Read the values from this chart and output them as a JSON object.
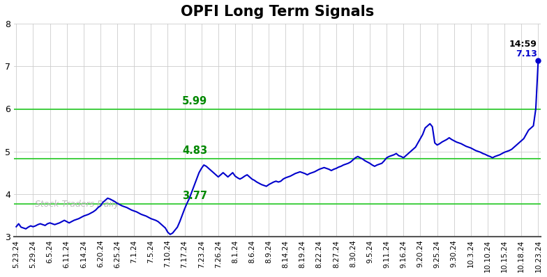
{
  "title": "OPFI Long Term Signals",
  "title_fontsize": 15,
  "background_color": "#ffffff",
  "line_color": "#0000cc",
  "line_width": 1.5,
  "ylim": [
    3.0,
    8.0
  ],
  "yticks": [
    3,
    4,
    5,
    6,
    7,
    8
  ],
  "hlines": [
    {
      "y": 3.77,
      "label": "3.77",
      "color": "#00aa00"
    },
    {
      "y": 4.83,
      "label": "4.83",
      "color": "#00aa00"
    },
    {
      "y": 5.99,
      "label": "5.99",
      "color": "#00aa00"
    }
  ],
  "watermark": "Stock Traders Daily",
  "watermark_color": "#bbbbbb",
  "annotation_time": "14:59",
  "annotation_value": "7.13",
  "annotation_color_time": "#000000",
  "annotation_color_value": "#0000cc",
  "x_labels": [
    "5.23.24",
    "5.29.24",
    "6.5.24",
    "6.11.24",
    "6.14.24",
    "6.20.24",
    "6.25.24",
    "7.1.24",
    "7.5.24",
    "7.10.24",
    "7.17.24",
    "7.23.24",
    "7.26.24",
    "8.1.24",
    "8.6.24",
    "8.9.24",
    "8.14.24",
    "8.19.24",
    "8.22.24",
    "8.27.24",
    "8.30.24",
    "9.5.24",
    "9.11.24",
    "9.16.24",
    "9.20.24",
    "9.25.24",
    "9.30.24",
    "10.3.24",
    "10.10.24",
    "10.15.24",
    "10.18.24",
    "10.23.24"
  ],
  "prices": [
    3.23,
    3.3,
    3.22,
    3.2,
    3.18,
    3.22,
    3.25,
    3.23,
    3.25,
    3.28,
    3.3,
    3.28,
    3.26,
    3.3,
    3.32,
    3.3,
    3.28,
    3.3,
    3.32,
    3.35,
    3.38,
    3.35,
    3.32,
    3.35,
    3.38,
    3.4,
    3.42,
    3.45,
    3.48,
    3.5,
    3.52,
    3.55,
    3.58,
    3.62,
    3.68,
    3.72,
    3.8,
    3.85,
    3.9,
    3.88,
    3.85,
    3.82,
    3.78,
    3.75,
    3.72,
    3.7,
    3.68,
    3.65,
    3.62,
    3.6,
    3.58,
    3.55,
    3.52,
    3.5,
    3.48,
    3.45,
    3.42,
    3.4,
    3.38,
    3.35,
    3.3,
    3.25,
    3.2,
    3.1,
    3.05,
    3.08,
    3.15,
    3.22,
    3.35,
    3.5,
    3.65,
    3.78,
    3.9,
    4.05,
    4.2,
    4.35,
    4.5,
    4.6,
    4.68,
    4.65,
    4.6,
    4.55,
    4.5,
    4.45,
    4.4,
    4.45,
    4.5,
    4.45,
    4.4,
    4.45,
    4.5,
    4.42,
    4.38,
    4.35,
    4.38,
    4.42,
    4.45,
    4.4,
    4.35,
    4.32,
    4.28,
    4.25,
    4.22,
    4.2,
    4.18,
    4.22,
    4.25,
    4.28,
    4.3,
    4.28,
    4.3,
    4.35,
    4.38,
    4.4,
    4.42,
    4.45,
    4.48,
    4.5,
    4.52,
    4.5,
    4.48,
    4.45,
    4.48,
    4.5,
    4.52,
    4.55,
    4.58,
    4.6,
    4.62,
    4.6,
    4.58,
    4.55,
    4.58,
    4.6,
    4.63,
    4.65,
    4.68,
    4.7,
    4.72,
    4.75,
    4.8,
    4.85,
    4.88,
    4.85,
    4.82,
    4.78,
    4.75,
    4.72,
    4.68,
    4.65,
    4.68,
    4.7,
    4.72,
    4.78,
    4.85,
    4.88,
    4.9,
    4.92,
    4.95,
    4.9,
    4.88,
    4.85,
    4.9,
    4.95,
    5.0,
    5.05,
    5.1,
    5.2,
    5.3,
    5.4,
    5.55,
    5.6,
    5.65,
    5.58,
    5.2,
    5.15,
    5.18,
    5.22,
    5.25,
    5.28,
    5.32,
    5.28,
    5.25,
    5.22,
    5.2,
    5.18,
    5.15,
    5.12,
    5.1,
    5.08,
    5.05,
    5.02,
    5.0,
    4.98,
    4.95,
    4.93,
    4.9,
    4.88,
    4.85,
    4.88,
    4.9,
    4.92,
    4.95,
    4.98,
    5.0,
    5.02,
    5.05,
    5.1,
    5.15,
    5.2,
    5.25,
    5.3,
    5.4,
    5.5,
    5.55,
    5.6,
    6.0,
    7.13
  ]
}
